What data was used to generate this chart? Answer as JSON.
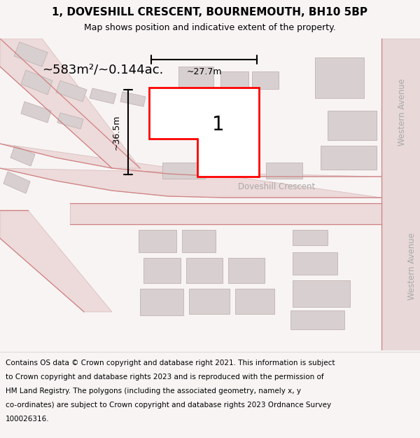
{
  "title_line1": "1, DOVESHILL CRESCENT, BOURNEMOUTH, BH10 5BP",
  "title_line2": "Map shows position and indicative extent of the property.",
  "area_label": "~583m²/~0.144ac.",
  "street_label_h": "Doveshill Crescent",
  "street_label_v1": "Western Avenue",
  "street_label_v2": "Western Avenue",
  "dim_width": "~27.7m",
  "dim_height": "~36.5m",
  "plot_number": "1",
  "footer_lines": [
    "Contains OS data © Crown copyright and database right 2021. This information is subject",
    "to Crown copyright and database rights 2023 and is reproduced with the permission of",
    "HM Land Registry. The polygons (including the associated geometry, namely x, y",
    "co-ordinates) are subject to Crown copyright and database rights 2023 Ordnance Survey",
    "100026316."
  ],
  "bg_color": "#f8f4f4",
  "map_bg": "#f8f4f4",
  "road_fill": "#eddada",
  "road_line": "#d08080",
  "building_fill": "#d8d0d0",
  "building_stroke": "#c8b8b8",
  "plot_fill": "#ffffff",
  "plot_stroke": "#ff0000",
  "dim_color": "#000000",
  "title_bg": "#ffffff",
  "footer_bg": "#ffffff",
  "street_color": "#aaaaaa"
}
